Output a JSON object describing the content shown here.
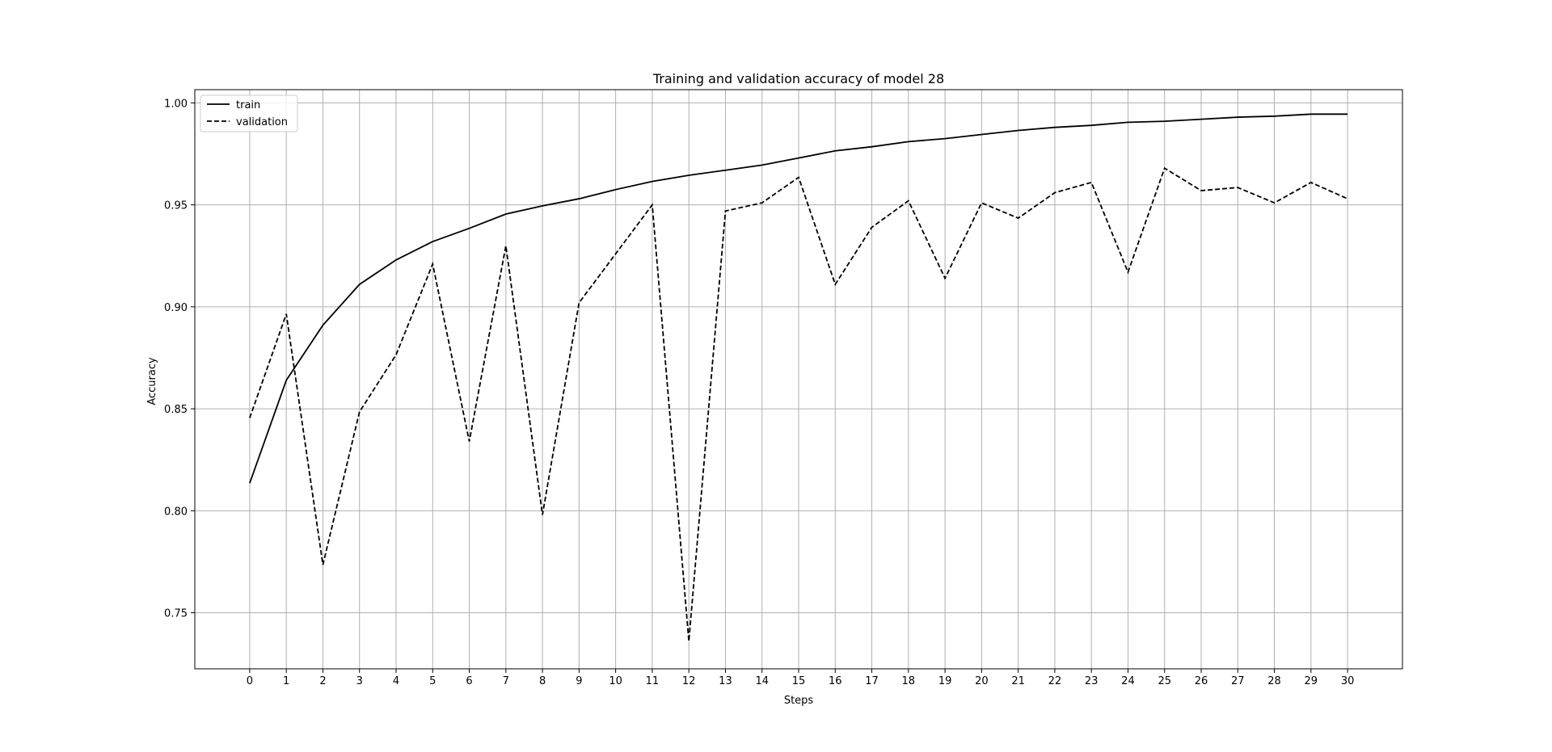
{
  "chart_data": {
    "type": "line",
    "title": "Training and validation accuracy of model 28",
    "xlabel": "Steps",
    "ylabel": "Accuracy",
    "x": [
      0,
      1,
      2,
      3,
      4,
      5,
      6,
      7,
      8,
      9,
      10,
      11,
      12,
      13,
      14,
      15,
      16,
      17,
      18,
      19,
      20,
      21,
      22,
      23,
      24,
      25,
      26,
      27,
      28,
      29,
      30
    ],
    "xlim": [
      -1.5,
      31.5
    ],
    "ylim": [
      0.7225,
      1.0065
    ],
    "x_ticks": [
      "0",
      "1",
      "2",
      "3",
      "4",
      "5",
      "6",
      "7",
      "8",
      "9",
      "10",
      "11",
      "12",
      "13",
      "14",
      "15",
      "16",
      "17",
      "18",
      "19",
      "20",
      "21",
      "22",
      "23",
      "24",
      "25",
      "26",
      "27",
      "28",
      "29",
      "30"
    ],
    "y_ticks": [
      {
        "value": 0.75,
        "label": "0.75"
      },
      {
        "value": 0.8,
        "label": "0.80"
      },
      {
        "value": 0.85,
        "label": "0.85"
      },
      {
        "value": 0.9,
        "label": "0.90"
      },
      {
        "value": 0.95,
        "label": "0.95"
      },
      {
        "value": 1.0,
        "label": "1.00"
      }
    ],
    "grid": true,
    "legend_position": "top-left",
    "series": [
      {
        "name": "train",
        "style": "solid",
        "color": "#000000",
        "values": [
          0.8135,
          0.864,
          0.891,
          0.911,
          0.923,
          0.932,
          0.9385,
          0.9455,
          0.9495,
          0.953,
          0.9575,
          0.9615,
          0.9645,
          0.967,
          0.9695,
          0.973,
          0.9765,
          0.9785,
          0.981,
          0.9825,
          0.9845,
          0.9865,
          0.988,
          0.989,
          0.9905,
          0.991,
          0.992,
          0.993,
          0.9935,
          0.9945,
          0.9945
        ]
      },
      {
        "name": "validation",
        "style": "dashed",
        "color": "#000000",
        "values": [
          0.8455,
          0.8965,
          0.7735,
          0.8485,
          0.8765,
          0.921,
          0.834,
          0.93,
          0.798,
          0.902,
          0.926,
          0.95,
          0.736,
          0.947,
          0.951,
          0.9635,
          0.911,
          0.939,
          0.952,
          0.914,
          0.951,
          0.9435,
          0.956,
          0.961,
          0.917,
          0.968,
          0.957,
          0.9585,
          0.951,
          0.961,
          0.953
        ]
      }
    ]
  }
}
